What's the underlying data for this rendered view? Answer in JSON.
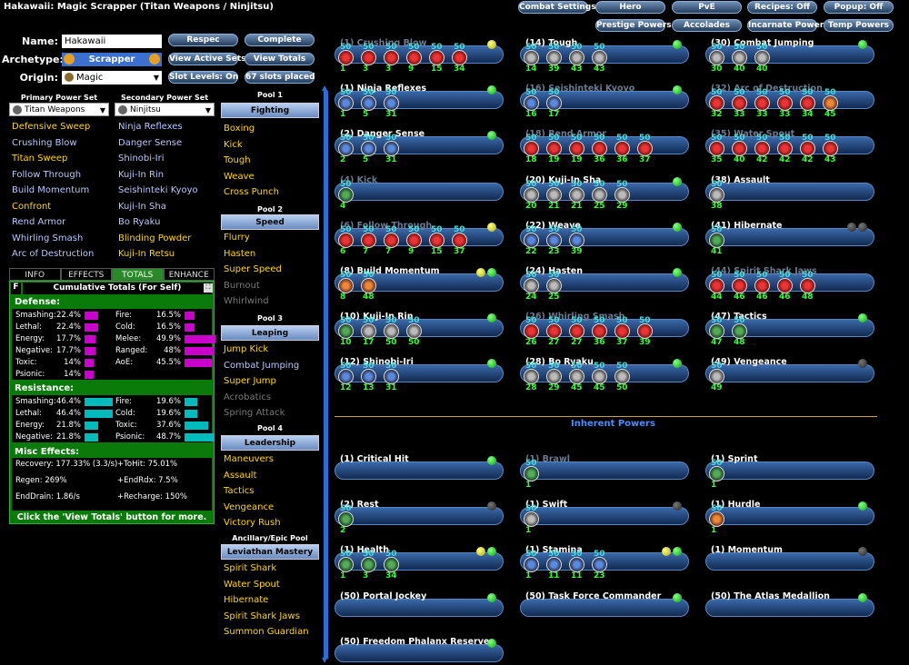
{
  "title": "Hakawaii: Magic Scrapper (Titan Weapons / Ninjitsu)",
  "top_buttons": [
    "Combat Settings",
    "Hero",
    "PvE",
    "Recipes: Off",
    "Popup: Off",
    "Prestige Powers",
    "Accolades",
    "Incarnate Powers",
    "Temp Powers"
  ],
  "labels": {
    "name": "Name:",
    "archetype": "Archetype:",
    "origin": "Origin:"
  },
  "fields": {
    "name": "Hakawaii",
    "archetype": "Scrapper",
    "origin": "Magic"
  },
  "mid_buttons": [
    "Respec",
    "Complete",
    "View Active Sets",
    "View Totals",
    "Slot Levels: On",
    "67 slots placed"
  ],
  "primary_header": "Primary Power Set",
  "secondary_header": "Secondary Power Set",
  "primary_set": "Titan Weapons",
  "secondary_set": "Ninjitsu",
  "primary_powers": [
    {
      "n": "Defensive Sweep",
      "c": "y"
    },
    {
      "n": "Crushing Blow",
      "c": "w"
    },
    {
      "n": "Titan Sweep",
      "c": "y"
    },
    {
      "n": "Follow Through",
      "c": "w"
    },
    {
      "n": "Build Momentum",
      "c": "w"
    },
    {
      "n": "Confront",
      "c": "y"
    },
    {
      "n": "Rend Armor",
      "c": "w"
    },
    {
      "n": "Whirling Smash",
      "c": "w"
    },
    {
      "n": "Arc of Destruction",
      "c": "w"
    }
  ],
  "secondary_powers": [
    {
      "n": "Ninja Reflexes",
      "c": "w"
    },
    {
      "n": "Danger Sense",
      "c": "w"
    },
    {
      "n": "Shinobi-Iri",
      "c": "w"
    },
    {
      "n": "Kuji-In Rin",
      "c": "w"
    },
    {
      "n": "Seishinteki Kyoyo",
      "c": "w"
    },
    {
      "n": "Kuji-In Sha",
      "c": "w"
    },
    {
      "n": "Bo Ryaku",
      "c": "w"
    },
    {
      "n": "Blinding Powder",
      "c": "y"
    },
    {
      "n": "Kuji-In Retsu",
      "c": "y"
    }
  ],
  "pools": [
    {
      "title": "Pool 1",
      "name": "Fighting",
      "powers": [
        {
          "n": "Boxing",
          "c": "y"
        },
        {
          "n": "Kick",
          "c": "y"
        },
        {
          "n": "Tough",
          "c": "y"
        },
        {
          "n": "Weave",
          "c": "y"
        },
        {
          "n": "Cross Punch",
          "c": "y"
        }
      ]
    },
    {
      "title": "Pool 2",
      "name": "Speed",
      "powers": [
        {
          "n": "Flurry",
          "c": "y"
        },
        {
          "n": "Hasten",
          "c": "y"
        },
        {
          "n": "Super Speed",
          "c": "y"
        },
        {
          "n": "Burnout",
          "c": "g"
        },
        {
          "n": "Whirlwind",
          "c": "g"
        }
      ]
    },
    {
      "title": "Pool 3",
      "name": "Leaping",
      "powers": [
        {
          "n": "Jump Kick",
          "c": "y"
        },
        {
          "n": "Combat Jumping",
          "c": "w"
        },
        {
          "n": "Super Jump",
          "c": "y"
        },
        {
          "n": "Acrobatics",
          "c": "g"
        },
        {
          "n": "Spring Attack",
          "c": "g"
        }
      ]
    },
    {
      "title": "Pool 4",
      "name": "Leadership",
      "powers": [
        {
          "n": "Maneuvers",
          "c": "y"
        },
        {
          "n": "Assault",
          "c": "y"
        },
        {
          "n": "Tactics",
          "c": "y"
        },
        {
          "n": "Vengeance",
          "c": "y"
        },
        {
          "n": "Victory Rush",
          "c": "y"
        }
      ]
    },
    {
      "title": "Ancillary/Epic Pool",
      "name": "Leviathan Mastery",
      "powers": [
        {
          "n": "Spirit Shark",
          "c": "y"
        },
        {
          "n": "Water Spout",
          "c": "y"
        },
        {
          "n": "Hibernate",
          "c": "y"
        },
        {
          "n": "Spirit Shark Jaws",
          "c": "y"
        },
        {
          "n": "Summon Guardian",
          "c": "y"
        }
      ]
    }
  ],
  "tabs": [
    "INFO",
    "EFFECTS",
    "TOTALS",
    "ENHANCE"
  ],
  "totals_header": "Cumulative Totals (For Self)",
  "defense_title": "Defense:",
  "defense": [
    {
      "l": "Smashing:",
      "v": "22.4%",
      "p": 0.22
    },
    {
      "l": "Fire:",
      "v": "16.5%",
      "p": 0.165
    },
    {
      "l": "Lethal:",
      "v": "22.4%",
      "p": 0.22
    },
    {
      "l": "Cold:",
      "v": "16.5%",
      "p": 0.165
    },
    {
      "l": "Energy:",
      "v": "17.7%",
      "p": 0.18
    },
    {
      "l": "Melee:",
      "v": "49.9%",
      "p": 0.5
    },
    {
      "l": "Negative:",
      "v": "17.7%",
      "p": 0.18
    },
    {
      "l": "Ranged:",
      "v": "48%",
      "p": 0.48
    },
    {
      "l": "Toxic:",
      "v": "14%",
      "p": 0.14
    },
    {
      "l": "AoE:",
      "v": "45.5%",
      "p": 0.455
    },
    {
      "l": "Psionic:",
      "v": "14%",
      "p": 0.14
    }
  ],
  "resistance_title": "Resistance:",
  "resistance": [
    {
      "l": "Smashing:",
      "v": "46.4%",
      "p": 0.46
    },
    {
      "l": "Fire:",
      "v": "19.6%",
      "p": 0.2
    },
    {
      "l": "Lethal:",
      "v": "46.4%",
      "p": 0.46
    },
    {
      "l": "Cold:",
      "v": "19.6%",
      "p": 0.2
    },
    {
      "l": "Energy:",
      "v": "21.8%",
      "p": 0.22
    },
    {
      "l": "Toxic:",
      "v": "37.6%",
      "p": 0.38
    },
    {
      "l": "Negative:",
      "v": "21.8%",
      "p": 0.22
    },
    {
      "l": "Psionic:",
      "v": "48.7%",
      "p": 0.49
    }
  ],
  "misc_title": "Misc Effects:",
  "misc": [
    "Recovery: 177.33% (3.3/s)",
    "+ToHit: 75.01%",
    "Regen: 269%",
    "+EndRdx: 7.5%",
    "EndDrain: 1.86/s",
    "+Recharge: 150%"
  ],
  "totals_footer": "Click the 'View Totals' button for more.",
  "inherent_title": "Inherent Powers",
  "slots": [
    {
      "n": "(1) Crushing Blow",
      "d": 1,
      "dots": "y",
      "e": [
        [
          "r",
          "1"
        ],
        [
          "r",
          "3"
        ],
        [
          "r",
          "3"
        ],
        [
          "r",
          "9"
        ],
        [
          "r",
          "15"
        ],
        [
          "r",
          "34"
        ]
      ]
    },
    {
      "n": "(14) Tough",
      "d": 0,
      "dots": "g",
      "e": [
        [
          "s",
          "14"
        ],
        [
          "s",
          "39"
        ],
        [
          "s",
          "43"
        ],
        [
          "s",
          "43"
        ]
      ]
    },
    {
      "n": "(30) Combat Jumping",
      "d": 0,
      "dots": "g",
      "e": [
        [
          "s",
          "30"
        ],
        [
          "s",
          "40"
        ],
        [
          "s",
          "40"
        ]
      ]
    },
    {
      "n": "(1) Ninja Reflexes",
      "d": 0,
      "dots": "g",
      "e": [
        [
          "b",
          "1"
        ],
        [
          "b",
          "5"
        ],
        [
          "b",
          "31"
        ]
      ]
    },
    {
      "n": "(16) Seishinteki Kyoyo",
      "d": 1,
      "dots": "g",
      "e": [
        [
          "b",
          "16"
        ],
        [
          "b",
          "17"
        ]
      ]
    },
    {
      "n": "(32) Arc of Destruction",
      "d": 1,
      "dots": "",
      "e": [
        [
          "r",
          "32"
        ],
        [
          "r",
          "33"
        ],
        [
          "r",
          "33"
        ],
        [
          "r",
          "33"
        ],
        [
          "r",
          "34"
        ],
        [
          "o",
          "45"
        ]
      ]
    },
    {
      "n": "(2) Danger Sense",
      "d": 0,
      "dots": "g",
      "e": [
        [
          "b",
          "2"
        ],
        [
          "b",
          "5"
        ],
        [
          "b",
          "31"
        ]
      ]
    },
    {
      "n": "(18) Rend Armor",
      "d": 1,
      "dots": "",
      "e": [
        [
          "r",
          "18"
        ],
        [
          "r",
          "19"
        ],
        [
          "r",
          "19"
        ],
        [
          "r",
          "36"
        ],
        [
          "r",
          "36"
        ],
        [
          "r",
          "37"
        ]
      ]
    },
    {
      "n": "(35) Water Spout",
      "d": 1,
      "dots": "",
      "e": [
        [
          "r",
          "35"
        ],
        [
          "r",
          "40"
        ],
        [
          "r",
          "42"
        ],
        [
          "r",
          "42"
        ],
        [
          "r",
          "42"
        ],
        [
          "r",
          "43"
        ]
      ]
    },
    {
      "n": "(4) Kick",
      "d": 1,
      "dots": "",
      "e": [
        [
          "gr",
          "4"
        ]
      ]
    },
    {
      "n": "(20) Kuji-In Sha",
      "d": 0,
      "dots": "g",
      "e": [
        [
          "s",
          "20"
        ],
        [
          "s",
          "21"
        ],
        [
          "s",
          "21"
        ],
        [
          "s",
          "25"
        ],
        [
          "s",
          "29"
        ]
      ]
    },
    {
      "n": "(38) Assault",
      "d": 0,
      "dots": "",
      "e": [
        [
          "s",
          "38"
        ]
      ]
    },
    {
      "n": "(6) Follow Through",
      "d": 1,
      "dots": "y",
      "e": [
        [
          "r",
          "6"
        ],
        [
          "r",
          "7"
        ],
        [
          "r",
          "7"
        ],
        [
          "r",
          "9"
        ],
        [
          "r",
          "15"
        ],
        [
          "r",
          "37"
        ]
      ]
    },
    {
      "n": "(22) Weave",
      "d": 0,
      "dots": "g",
      "e": [
        [
          "b",
          "22"
        ],
        [
          "b",
          "23"
        ],
        [
          "b",
          "39"
        ]
      ]
    },
    {
      "n": "(41) Hibernate",
      "d": 0,
      "dots": "kk",
      "e": [
        [
          "gr",
          "41"
        ]
      ]
    },
    {
      "n": "(8) Build Momentum",
      "d": 0,
      "dots": "yg",
      "e": [
        [
          "o",
          "8"
        ],
        [
          "o",
          "48"
        ]
      ]
    },
    {
      "n": "(24) Hasten",
      "d": 0,
      "dots": "g",
      "e": [
        [
          "s",
          "24"
        ],
        [
          "s",
          "25"
        ]
      ]
    },
    {
      "n": "(44) Spirit Shark Jaws",
      "d": 1,
      "dots": "",
      "e": [
        [
          "r",
          "44"
        ],
        [
          "r",
          "46"
        ],
        [
          "r",
          "46"
        ],
        [
          "r",
          "46"
        ],
        [
          "r",
          "48"
        ]
      ]
    },
    {
      "n": "(10) Kuji-In Rin",
      "d": 0,
      "dots": "g",
      "e": [
        [
          "gr",
          "10"
        ],
        [
          "s",
          "17"
        ],
        [
          "s",
          "50"
        ],
        [
          "s",
          "50"
        ]
      ]
    },
    {
      "n": "(26) Whirling Smash",
      "d": 1,
      "dots": "",
      "e": [
        [
          "r",
          "26"
        ],
        [
          "r",
          "27"
        ],
        [
          "r",
          "27"
        ],
        [
          "r",
          "36"
        ],
        [
          "r",
          "37"
        ],
        [
          "r",
          "39"
        ]
      ]
    },
    {
      "n": "(47) Tactics",
      "d": 0,
      "dots": "g",
      "e": [
        [
          "gr",
          "47"
        ],
        [
          "gr",
          "48"
        ]
      ]
    },
    {
      "n": "(12) Shinobi-Iri",
      "d": 0,
      "dots": "g",
      "e": [
        [
          "b",
          "12"
        ],
        [
          "b",
          "13"
        ],
        [
          "b",
          "31"
        ]
      ]
    },
    {
      "n": "(28) Bo Ryaku",
      "d": 0,
      "dots": "g",
      "e": [
        [
          "s",
          "28"
        ],
        [
          "s",
          "29"
        ],
        [
          "s",
          "45"
        ],
        [
          "s",
          "45"
        ],
        [
          "s",
          "50"
        ]
      ]
    },
    {
      "n": "(49) Vengeance",
      "d": 0,
      "dots": "k",
      "e": [
        [
          "s",
          "49"
        ]
      ]
    }
  ],
  "inherent": [
    {
      "n": "(1) Critical Hit",
      "d": 0,
      "dots": "g",
      "e": []
    },
    {
      "n": "(1) Brawl",
      "d": 1,
      "dots": "",
      "e": [
        [
          "gr",
          "1"
        ]
      ]
    },
    {
      "n": "(1) Sprint",
      "d": 0,
      "dots": "",
      "e": [
        [
          "gr",
          "1"
        ]
      ]
    },
    {
      "n": "(2) Rest",
      "d": 0,
      "dots": "k",
      "e": [
        [
          "gr",
          "2"
        ]
      ]
    },
    {
      "n": "(1) Swift",
      "d": 0,
      "dots": "k",
      "e": [
        [
          "s",
          "1"
        ]
      ]
    },
    {
      "n": "(1) Hurdle",
      "d": 0,
      "dots": "g",
      "e": [
        [
          "o",
          "1"
        ]
      ]
    },
    {
      "n": "(1) Health",
      "d": 0,
      "dots": "yg",
      "e": [
        [
          "gr",
          "1"
        ],
        [
          "gr",
          "3"
        ],
        [
          "gr",
          "34"
        ]
      ]
    },
    {
      "n": "(1) Stamina",
      "d": 0,
      "dots": "yg",
      "e": [
        [
          "b",
          "1"
        ],
        [
          "b",
          "11"
        ],
        [
          "b",
          "11"
        ],
        [
          "b",
          "23"
        ]
      ]
    },
    {
      "n": "(1) Momentum",
      "d": 0,
      "dots": "k",
      "e": []
    },
    {
      "n": "(50) Portal Jockey",
      "d": 0,
      "dots": "g",
      "e": []
    },
    {
      "n": "(50) Task Force Commander",
      "d": 0,
      "dots": "g",
      "e": []
    },
    {
      "n": "(50) The Atlas Medallion",
      "d": 0,
      "dots": "g",
      "e": []
    },
    {
      "n": "(50) Freedom Phalanx Reserve",
      "d": 0,
      "dots": "g",
      "e": []
    }
  ],
  "colors": {
    "green_panel": "#0a7a0a",
    "def_bar": "#cc00cc",
    "res_bar": "#00bbbb",
    "accent": "#2a6fd8",
    "gold": "#ffd700"
  }
}
